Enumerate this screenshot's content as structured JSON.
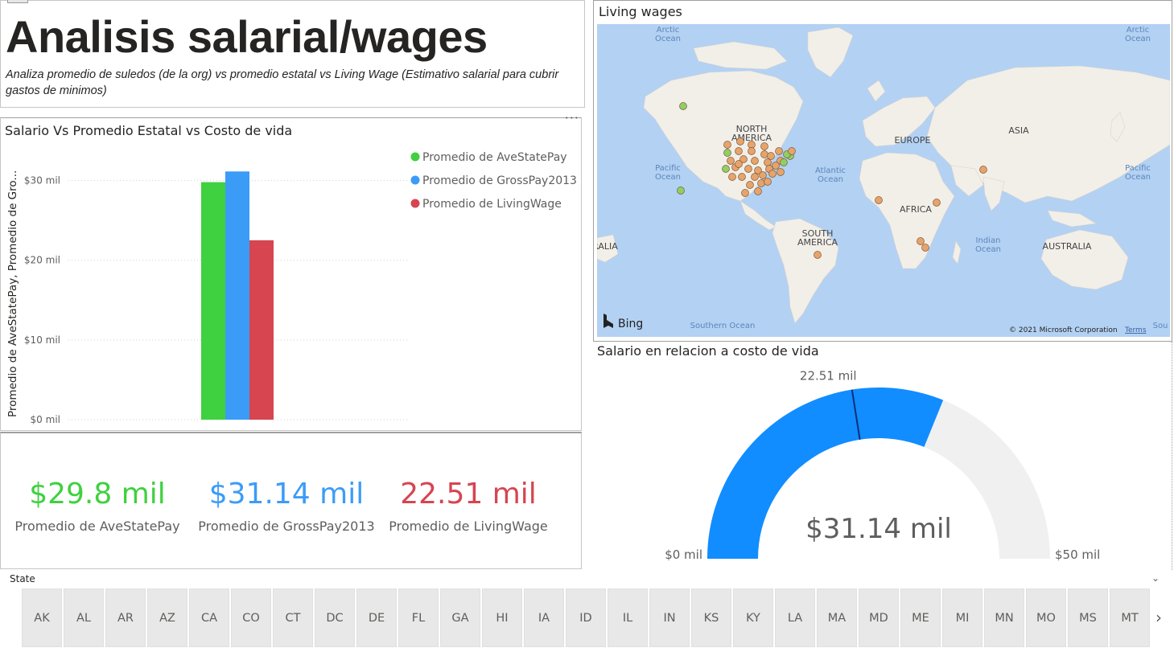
{
  "header": {
    "title": "Analisis salarial/wages",
    "subtitle": "Analiza promedio de suledos (de la org) vs promedio estatal vs Living Wage (Estimativo salarial para cubrir gastos de minimos)"
  },
  "bar_visual": {
    "title": "Salario Vs Promedio Estatal vs Costo de vida",
    "more_options": "···"
  },
  "kpis": [
    {
      "value": "$29.8 mil",
      "label": "Promedio de AveStatePay",
      "color": "#3fd13f"
    },
    {
      "value": "$31.14 mil",
      "label": "Promedio de GrossPay2013",
      "color": "#3b9cf7"
    },
    {
      "value": "22.51 mil",
      "label": "Promedio de LivingWage",
      "color": "#d64550"
    }
  ],
  "map_visual": {
    "title": "Living wages",
    "attribution": "© 2021 Microsoft Corporation",
    "terms": "Terms",
    "bing": "Bing",
    "labels": {
      "arctic_left": [
        "Arctic",
        "Ocean"
      ],
      "arctic_right": [
        "Arctic",
        "Ocean"
      ],
      "north_america": [
        "NORTH",
        "AMERICA"
      ],
      "europe": "EUROPE",
      "asia": "ASIA",
      "pacific_left": [
        "Pacific",
        "Ocean"
      ],
      "pacific_right": [
        "Pacific",
        "Ocean"
      ],
      "atlantic": [
        "Atlantic",
        "Ocean"
      ],
      "africa": "AFRICA",
      "south_america": [
        "SOUTH",
        "AMERICA"
      ],
      "indian": [
        "Indian",
        "Ocean"
      ],
      "australia": "AUSTRALIA",
      "ralia": "RALIA",
      "southern": "Southern Ocean",
      "sou": "Sou"
    }
  },
  "gauge_visual": {
    "title": "Salario en relacion a costo de vida",
    "min_label": "$0 mil",
    "max_label": "$50 mil",
    "target_label": "22.51 mil",
    "value_label": "$31.14 mil",
    "min": 0,
    "max": 50,
    "value": 31.14,
    "target": 22.51,
    "fill_color": "#118dff",
    "track_color": "#f0f0f0",
    "target_color": "#0a2f7a"
  },
  "slicer": {
    "title": "State",
    "chevron": "⌄",
    "next": "›",
    "items": [
      "AK",
      "AL",
      "AR",
      "AZ",
      "CA",
      "CO",
      "CT",
      "DC",
      "DE",
      "FL",
      "GA",
      "HI",
      "IA",
      "ID",
      "IL",
      "IN",
      "KS",
      "KY",
      "LA",
      "MA",
      "MD",
      "ME",
      "MI",
      "MN",
      "MO",
      "MS",
      "MT"
    ]
  },
  "chart_data": {
    "type": "bar",
    "title": "Salario Vs Promedio Estatal vs Costo de vida",
    "ylabel": "Promedio de AveStatePay, Promedio de Gro...",
    "ylim": [
      0,
      35
    ],
    "yticks": [
      0,
      10,
      20,
      30
    ],
    "ytick_labels": [
      "$0 mil",
      "$10 mil",
      "$20 mil",
      "$30 mil"
    ],
    "grid": true,
    "legend_position": "top-right",
    "series": [
      {
        "name": "Promedio de AveStatePay",
        "values": [
          29.8
        ],
        "color": "#3fd13f"
      },
      {
        "name": "Promedio de GrossPay2013",
        "values": [
          31.14
        ],
        "color": "#3b9cf7"
      },
      {
        "name": "Promedio de LivingWage",
        "values": [
          22.51
        ],
        "color": "#d64550"
      }
    ]
  }
}
